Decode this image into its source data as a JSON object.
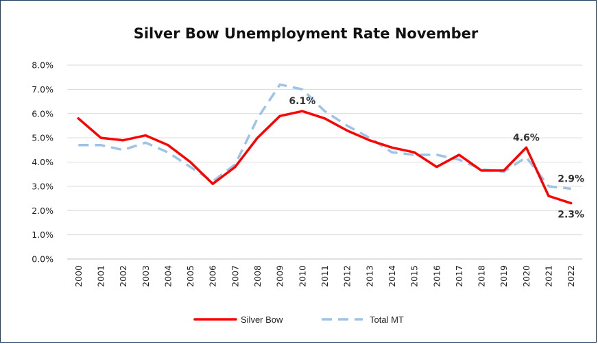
{
  "chart_data": {
    "type": "line",
    "title": "Silver Bow Unemployment Rate November",
    "xlabel": "",
    "ylabel": "",
    "categories": [
      "2000",
      "2001",
      "2002",
      "2003",
      "2004",
      "2005",
      "2006",
      "2007",
      "2008",
      "2009",
      "2010",
      "2011",
      "2012",
      "2013",
      "2014",
      "2015",
      "2016",
      "2017",
      "2018",
      "2019",
      "2020",
      "2021",
      "2022"
    ],
    "y_ticks": [
      "0.0%",
      "1.0%",
      "2.0%",
      "3.0%",
      "4.0%",
      "5.0%",
      "6.0%",
      "7.0%",
      "8.0%"
    ],
    "ylim": [
      0,
      8
    ],
    "grid": true,
    "legend_position": "bottom",
    "series": [
      {
        "name": "Silver Bow",
        "color": "#ff0000",
        "style": "solid",
        "values": [
          5.8,
          5.0,
          4.9,
          5.1,
          4.7,
          4.0,
          3.1,
          3.8,
          5.0,
          5.9,
          6.1,
          5.8,
          5.3,
          4.9,
          4.6,
          4.4,
          3.8,
          4.3,
          3.65,
          3.65,
          4.6,
          2.6,
          2.3
        ]
      },
      {
        "name": "Total MT",
        "color": "#9dc3e6",
        "style": "dashed",
        "values": [
          4.7,
          4.7,
          4.5,
          4.8,
          4.4,
          3.8,
          3.2,
          3.9,
          5.8,
          7.2,
          7.0,
          6.1,
          5.5,
          5.0,
          4.4,
          4.3,
          4.3,
          4.1,
          3.7,
          3.6,
          4.2,
          3.0,
          2.9
        ]
      }
    ],
    "annotations": [
      {
        "series": 0,
        "index": 10,
        "text": "6.1%",
        "placement": "above"
      },
      {
        "series": 0,
        "index": 20,
        "text": "4.6%",
        "placement": "above"
      },
      {
        "series": 1,
        "index": 22,
        "text": "2.9%",
        "placement": "above"
      },
      {
        "series": 0,
        "index": 22,
        "text": "2.3%",
        "placement": "below"
      }
    ]
  }
}
